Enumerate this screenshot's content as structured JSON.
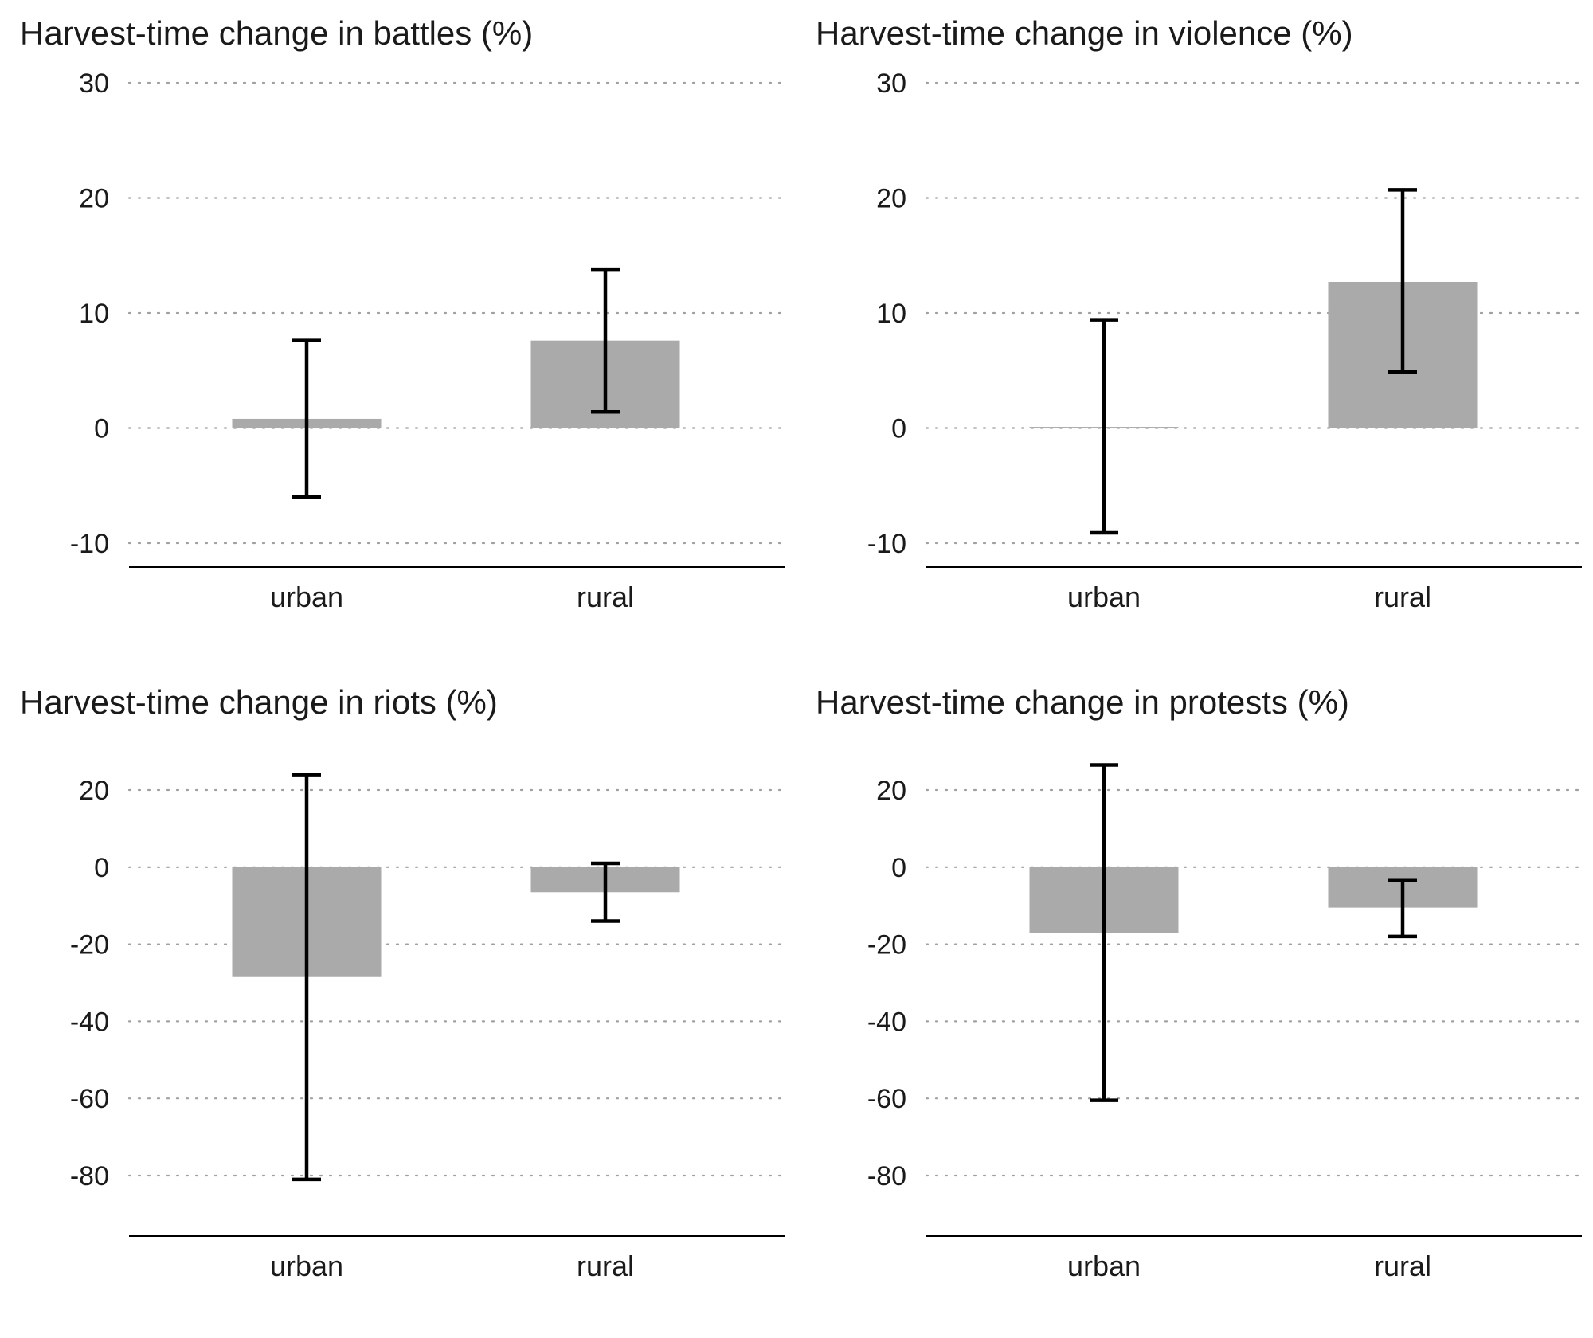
{
  "chart_data": [
    {
      "type": "bar",
      "title": "Harvest-time change in battles (%)",
      "categories": [
        "urban",
        "rural"
      ],
      "values": [
        0.8,
        7.6
      ],
      "error_low": [
        -6.0,
        1.4
      ],
      "error_high": [
        7.6,
        13.8
      ],
      "yticks": [
        30,
        20,
        10,
        0,
        -10
      ],
      "ylim": [
        -12,
        30
      ],
      "grid": true,
      "color": "#aaaaaa"
    },
    {
      "type": "bar",
      "title": "Harvest-time change in violence (%)",
      "categories": [
        "urban",
        "rural"
      ],
      "values": [
        0.1,
        12.7
      ],
      "error_low": [
        -9.1,
        4.9
      ],
      "error_high": [
        9.4,
        20.7
      ],
      "yticks": [
        30,
        20,
        10,
        0,
        -10
      ],
      "ylim": [
        -12,
        30
      ],
      "grid": true,
      "color": "#aaaaaa"
    },
    {
      "type": "bar",
      "title": "Harvest-time change in riots (%)",
      "categories": [
        "urban",
        "rural"
      ],
      "values": [
        -28.5,
        -6.5
      ],
      "error_low": [
        -81.0,
        -14.0
      ],
      "error_high": [
        24.0,
        1.0
      ],
      "yticks": [
        20,
        0,
        -20,
        -40,
        -60,
        -80
      ],
      "ylim": [
        -96,
        30
      ],
      "grid": true,
      "color": "#aaaaaa"
    },
    {
      "type": "bar",
      "title": "Harvest-time change in protests (%)",
      "categories": [
        "urban",
        "rural"
      ],
      "values": [
        -17.0,
        -10.5
      ],
      "error_low": [
        -60.5,
        -18.0
      ],
      "error_high": [
        26.5,
        -3.5
      ],
      "yticks": [
        20,
        0,
        -20,
        -40,
        -60,
        -80
      ],
      "ylim": [
        -96,
        30
      ],
      "grid": true,
      "color": "#aaaaaa"
    }
  ]
}
